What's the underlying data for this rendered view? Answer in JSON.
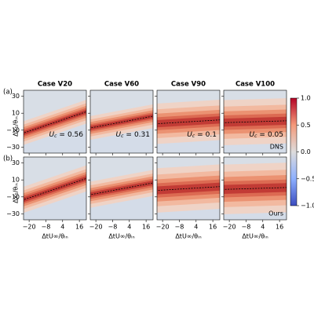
{
  "chart_data": {
    "type": "contour-grid",
    "columns": [
      "Case V20",
      "Case V60",
      "Case V90",
      "Case V100"
    ],
    "rows": [
      {
        "label": "(a)",
        "tag": "DNS"
      },
      {
        "label": "(b)",
        "tag": "Ours"
      }
    ],
    "annotation": {
      "symbol": "U",
      "subscript": "c",
      "relation": "=",
      "values": [
        0.56,
        0.31,
        0.1,
        0.05
      ]
    },
    "xlabel": "ΔtU∞/θᵢₙ",
    "ylabel": "Δx₁/θᵢₙ",
    "xlim": [
      -24,
      21
    ],
    "xticks": [
      {
        "value": -20,
        "label": "−20"
      },
      {
        "value": -8,
        "label": "−8"
      },
      4,
      16
    ],
    "ylim": [
      -37,
      37
    ],
    "yticks": [
      30,
      10,
      {
        "value": -10,
        "label": "−10"
      },
      {
        "value": -30,
        "label": "−30"
      }
    ],
    "colorbar": {
      "lim": [
        -1,
        1
      ],
      "ticks": [
        {
          "value": 1,
          "label": "1.0"
        },
        {
          "value": 0.5,
          "label": "0.5"
        },
        {
          "value": 0,
          "label": "0.0"
        },
        {
          "value": -0.5,
          "label": "−0.5"
        },
        {
          "value": -1,
          "label": "−1.0"
        }
      ]
    }
  }
}
